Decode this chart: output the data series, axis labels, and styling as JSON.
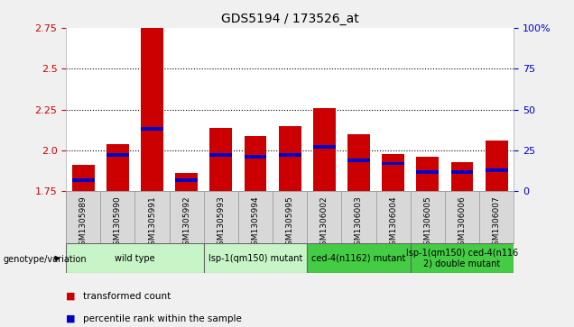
{
  "title": "GDS5194 / 173526_at",
  "samples": [
    "GSM1305989",
    "GSM1305990",
    "GSM1305991",
    "GSM1305992",
    "GSM1305993",
    "GSM1305994",
    "GSM1305995",
    "GSM1306002",
    "GSM1306003",
    "GSM1306004",
    "GSM1306005",
    "GSM1306006",
    "GSM1306007"
  ],
  "red_values": [
    1.91,
    2.04,
    2.75,
    1.86,
    2.14,
    2.09,
    2.15,
    2.26,
    2.1,
    1.98,
    1.96,
    1.93,
    2.06
  ],
  "blue_values": [
    1.82,
    1.97,
    2.13,
    1.82,
    1.97,
    1.96,
    1.97,
    2.02,
    1.94,
    1.92,
    1.87,
    1.87,
    1.88
  ],
  "ymin": 1.75,
  "ymax": 2.75,
  "yticks_left": [
    1.75,
    2.0,
    2.25,
    2.5,
    2.75
  ],
  "yticks_right": [
    0,
    25,
    50,
    75,
    100
  ],
  "grid_values": [
    2.0,
    2.25,
    2.5
  ],
  "groups": [
    {
      "label": "wild type",
      "start": 0,
      "end": 3,
      "color": "#c8f5c8"
    },
    {
      "label": "lsp-1(qm150) mutant",
      "start": 4,
      "end": 6,
      "color": "#c8f5c8"
    },
    {
      "label": "ced-4(n1162) mutant",
      "start": 7,
      "end": 9,
      "color": "#44cc44"
    },
    {
      "label": "lsp-1(qm150) ced-4(n116\n2) double mutant",
      "start": 10,
      "end": 12,
      "color": "#44cc44"
    }
  ],
  "bar_color": "#cc0000",
  "blue_color": "#0000cc",
  "bar_width": 0.65,
  "cell_bg": "#d8d8d8",
  "plot_bg": "#ffffff",
  "fig_bg": "#f0f0f0",
  "legend_text1": "transformed count",
  "legend_text2": "percentile rank within the sample",
  "genotype_label": "genotype/variation"
}
